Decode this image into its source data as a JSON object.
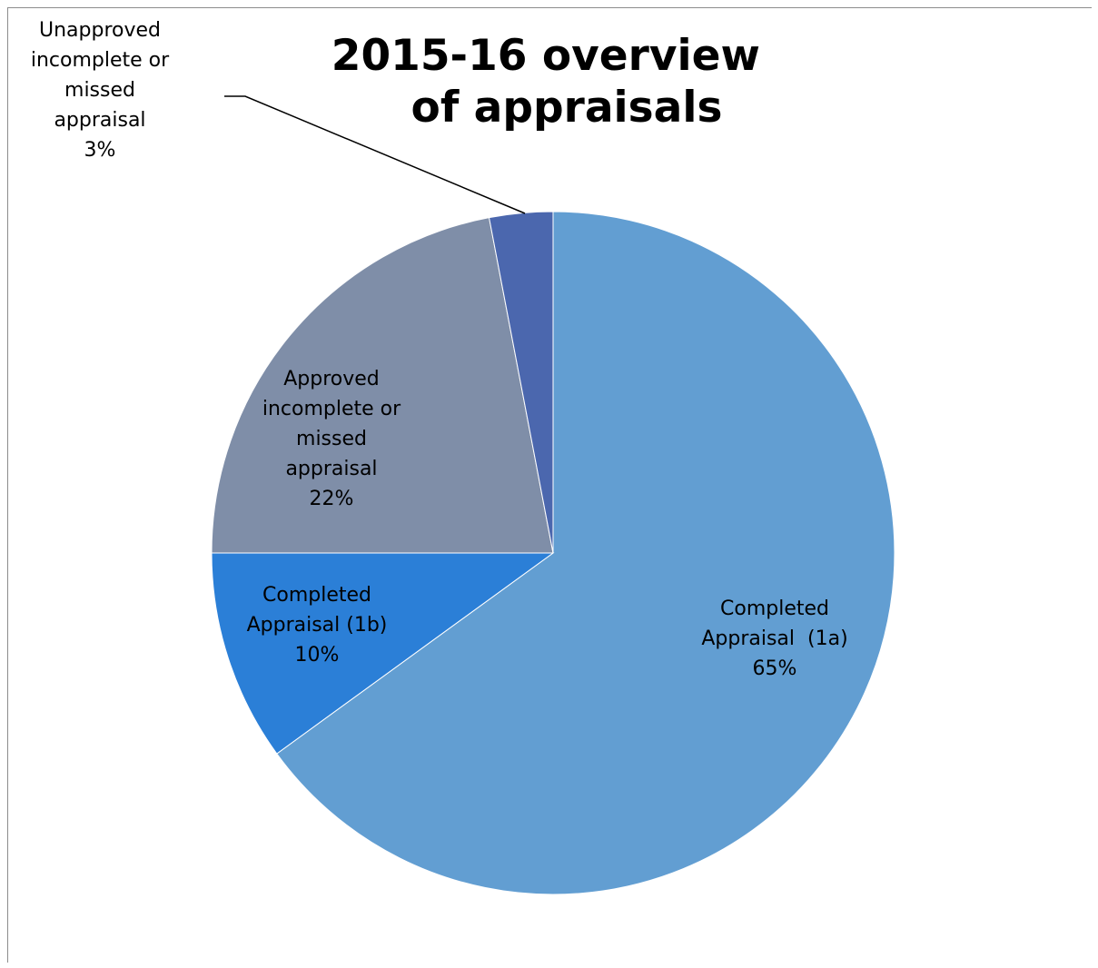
{
  "chart_data": {
    "type": "pie",
    "title": "2015-16 overview of appraisals",
    "title_lines": [
      "2015-16 overview",
      "of appraisals"
    ],
    "slices": [
      {
        "name": "Completed Appraisal  (1a)",
        "value": 65,
        "color": "#629ed2",
        "label_lines": [
          "Completed",
          "Appraisal  (1a)",
          "65%"
        ]
      },
      {
        "name": "Completed Appraisal (1b)",
        "value": 10,
        "color": "#2b7fd7",
        "label_lines": [
          "Completed",
          "Appraisal (1b)",
          "10%"
        ]
      },
      {
        "name": "Approved incomplete or missed appraisal",
        "value": 22,
        "color": "#7f8ea8",
        "label_lines": [
          "Approved",
          "incomplete or",
          "missed",
          "appraisal",
          "22%"
        ]
      },
      {
        "name": "Unapproved incomplete or missed appraisal",
        "value": 3,
        "color": "#4b67ae",
        "label_lines": [
          "Unapproved",
          "incomplete or",
          "missed",
          "appraisal",
          "3%"
        ]
      }
    ],
    "start_angle": "12 o'clock",
    "direction": "clockwise",
    "legend": "none"
  }
}
